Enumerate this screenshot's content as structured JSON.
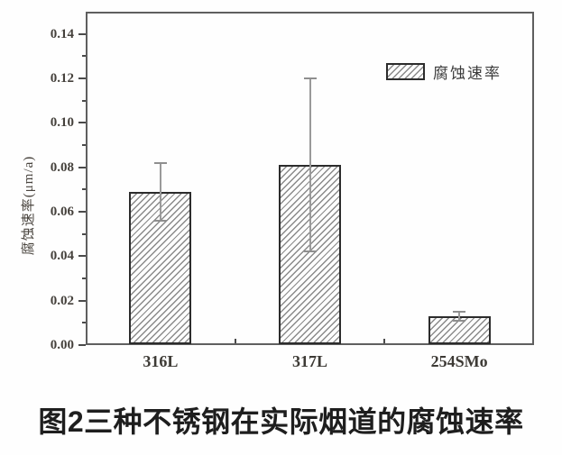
{
  "figure": {
    "caption": "图2三种不锈钢在实际烟道的腐蚀速率"
  },
  "chart_data": {
    "type": "bar",
    "title": "",
    "categories": [
      "316L",
      "317L",
      "254SMo"
    ],
    "values": [
      0.069,
      0.081,
      0.013
    ],
    "error_bars": [
      0.013,
      0.039,
      0.002
    ],
    "series_name": "腐蚀速率",
    "xlabel": "",
    "ylabel": "腐蚀速率(μm/a)",
    "ylim": [
      0,
      0.15
    ],
    "yticks": [
      0.0,
      0.02,
      0.04,
      0.06,
      0.08,
      0.1,
      0.12,
      0.14
    ],
    "ytick_labels": [
      "0.00",
      "0.02",
      "0.04",
      "0.06",
      "0.08",
      "0.10",
      "0.12",
      "0.14"
    ],
    "minor_ytick_step": 0.01,
    "grid": false,
    "legend": {
      "label": "腐蚀速率",
      "position": "upper-right",
      "swatch": "diagonal-hatch"
    },
    "style": {
      "bar_fill": "#fdfdfd",
      "bar_hatch_color": "#8a8a8a",
      "bar_border_color": "#2c2c2c",
      "error_bar_color": "#9a9a9a",
      "axis_color": "#5f5f5f",
      "tick_text_color": "#45413c",
      "caption_color": "#1e1e1e"
    }
  }
}
